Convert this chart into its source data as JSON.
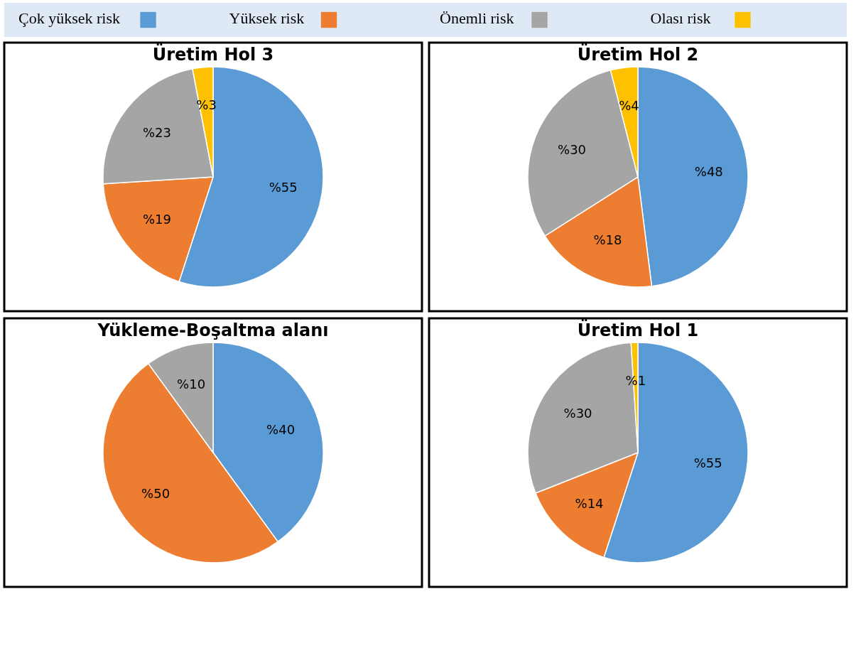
{
  "chart_data": [
    {
      "type": "pie",
      "title": "Üretim Hol 3",
      "legend": "top",
      "categories": [
        "Çok yüksek risk",
        "Yüksek risk",
        "Önemli risk",
        "Olası risk"
      ],
      "values": [
        55,
        19,
        23,
        3
      ],
      "colors": [
        "#5b9bd5",
        "#ed7d31",
        "#a5a5a5",
        "#ffc000"
      ],
      "value_labels": [
        "%55",
        "%19",
        "%23",
        "%3"
      ]
    },
    {
      "type": "pie",
      "title": "Üretim Hol 2",
      "categories": [
        null,
        null,
        null,
        null
      ],
      "values": [
        48,
        18,
        30,
        4
      ],
      "colors": [
        "#5b9bd5",
        "#ed7d31",
        "#a5a5a5",
        "#ffc000"
      ],
      "value_labels": [
        "%48",
        "%18",
        "%30",
        "%4"
      ]
    },
    {
      "type": "pie",
      "title": "Yükleme-Boşaltma alanı",
      "categories": [
        null,
        null,
        null
      ],
      "values": [
        40,
        50,
        10
      ],
      "colors": [
        "#5b9bd5",
        "#ed7d31",
        "#a5a5a5"
      ],
      "value_labels": [
        "%40",
        "%50",
        "%10"
      ]
    },
    {
      "type": "pie",
      "title": "Üretim Hol 1",
      "categories": [
        null,
        null,
        null,
        null
      ],
      "values": [
        55,
        14,
        30,
        1
      ],
      "colors": [
        "#5b9bd5",
        "#ed7d31",
        "#a5a5a5",
        "#ffc000"
      ],
      "value_labels": [
        "%55",
        "%14",
        "%30",
        "%1"
      ]
    }
  ]
}
